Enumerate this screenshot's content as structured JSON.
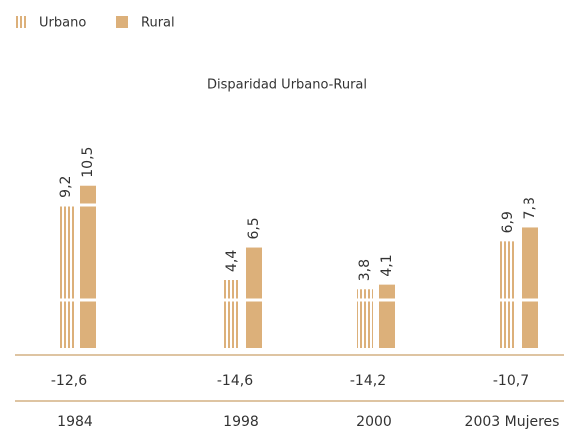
{
  "chart_data": {
    "type": "bar",
    "title": "Disparidad Urbano-Rural",
    "categories": [
      "1984",
      "1998",
      "2000",
      "2003 Mujeres"
    ],
    "series": [
      {
        "name": "Urbano",
        "color": "#dcb07a",
        "values": [
          9.2,
          4.4,
          3.8,
          6.9
        ],
        "value_labels": [
          "9,2",
          "4,4",
          "3,8",
          "6,9"
        ]
      },
      {
        "name": "Rural",
        "color": "#dcb07a",
        "values": [
          10.5,
          6.5,
          4.1,
          7.8
        ],
        "value_labels": [
          "10,5",
          "6,5",
          "4,1",
          "7,8"
        ]
      }
    ],
    "disparity": {
      "values": [
        -12.6,
        -14.6,
        -14.2,
        -10.7
      ],
      "value_labels": [
        "-12,6",
        "-14,6",
        "-14,2",
        "-10,7"
      ]
    },
    "ylim": [
      0,
      11
    ]
  }
}
